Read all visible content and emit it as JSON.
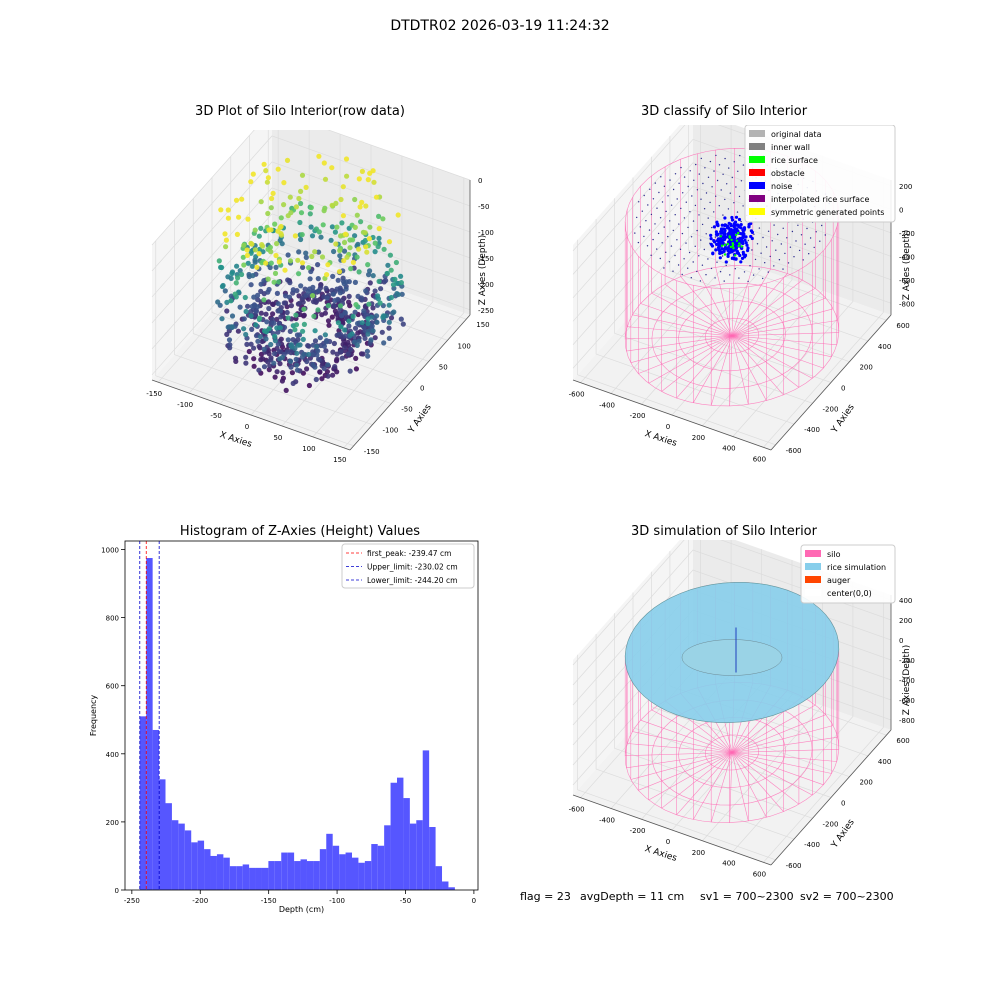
{
  "figure": {
    "suptitle": "DTDTR02 2026-03-19 11:24:32",
    "footer": {
      "flag": "flag = 23",
      "avg_depth": "avgDepth = 11 cm",
      "sv1": "sv1 = 700~2300",
      "sv2": "sv2 = 700~2300"
    }
  },
  "colors": {
    "pane": "#f2f2f2",
    "grid": "#dcdcdc",
    "silo_wire": "#ff69b4",
    "rice_sim": "#87ceeb",
    "noise": "#0000ff",
    "hist_bar": "#4d4dff",
    "peak_line": "#ff0000",
    "limit_line": "#0000cc"
  },
  "chart_data": [
    {
      "type": "scatter",
      "title": "3D Plot of Silo Interior(row data)",
      "xlabel": "X Axies",
      "ylabel": "Y Axies",
      "zlabel": "Z Axies (Depth)",
      "x_ticks": [
        "-150",
        "-100",
        "-50",
        "0",
        "50",
        "100",
        "150"
      ],
      "y_ticks": [
        "-150",
        "-100",
        "-50",
        "0",
        "50",
        "100",
        "150"
      ],
      "z_ticks": [
        "0",
        "-50",
        "-100",
        "-150",
        "-200",
        "-250"
      ],
      "xlim": [
        -160,
        160
      ],
      "ylim": [
        -160,
        160
      ],
      "zlim": [
        -260,
        0
      ],
      "colormap": "viridis",
      "grid": true
    },
    {
      "type": "scatter",
      "title": "3D classify of Silo Interior",
      "xlabel": "X Axies",
      "ylabel": "Y Axies",
      "zlabel": "Z Axies (Depth)",
      "x_ticks": [
        "-600",
        "-400",
        "-200",
        "0",
        "200",
        "400",
        "600"
      ],
      "y_ticks": [
        "-600",
        "-400",
        "-200",
        "0",
        "200",
        "400",
        "600"
      ],
      "z_ticks": [
        "200",
        "0",
        "-200",
        "-400",
        "-600",
        "-800"
      ],
      "xlim": [
        -650,
        650
      ],
      "ylim": [
        -650,
        650
      ],
      "zlim": [
        -900,
        250
      ],
      "legend_position": "top-right",
      "legend": [
        {
          "label": "original data",
          "color": "#b3b3b3"
        },
        {
          "label": "inner wall",
          "color": "#808080"
        },
        {
          "label": "rice surface",
          "color": "#00ff00"
        },
        {
          "label": "obstacle",
          "color": "#ff0000"
        },
        {
          "label": "noise",
          "color": "#0000ff"
        },
        {
          "label": "interpolated rice surface",
          "color": "#800080"
        },
        {
          "label": "symmetric generated points",
          "color": "#ffff00"
        }
      ],
      "grid": true
    },
    {
      "type": "bar",
      "title": "Histogram of Z-Axies (Height) Values",
      "xlabel": "Depth (cm)",
      "ylabel": "Frequency",
      "x_ticks": [
        "-250",
        "-200",
        "-150",
        "-100",
        "-50",
        "0"
      ],
      "y_ticks": [
        "0",
        "200",
        "400",
        "600",
        "800",
        "1000"
      ],
      "xlim": [
        -255,
        3
      ],
      "ylim": [
        0,
        1025
      ],
      "bin_width": 4.7,
      "bin_start": -244.2,
      "values": [
        510,
        975,
        470,
        325,
        255,
        205,
        195,
        175,
        140,
        145,
        120,
        100,
        105,
        95,
        70,
        70,
        75,
        65,
        65,
        65,
        85,
        85,
        110,
        110,
        85,
        90,
        85,
        85,
        120,
        165,
        130,
        105,
        110,
        95,
        80,
        85,
        135,
        130,
        190,
        315,
        330,
        270,
        195,
        205,
        410,
        185,
        70,
        25,
        8
      ],
      "vlines": [
        {
          "label": "first_peak: -239.47 cm",
          "x": -239.47,
          "color": "#ff0000"
        },
        {
          "label": "Upper_limit: -230.02 cm",
          "x": -230.02,
          "color": "#0000cc"
        },
        {
          "label": "Lower_limit: -244.20 cm",
          "x": -244.2,
          "color": "#0000cc"
        }
      ],
      "legend_position": "top-right",
      "grid": false
    },
    {
      "type": "scatter",
      "title": "3D simulation of Silo Interior",
      "xlabel": "X Axies",
      "ylabel": "Y Axies",
      "zlabel": "Z Axies (Depth)",
      "x_ticks": [
        "-600",
        "-400",
        "-200",
        "0",
        "200",
        "400",
        "600"
      ],
      "y_ticks": [
        "-600",
        "-400",
        "-200",
        "0",
        "200",
        "400",
        "600"
      ],
      "z_ticks": [
        "400",
        "200",
        "0",
        "-200",
        "-400",
        "-600",
        "-800"
      ],
      "xlim": [
        -650,
        650
      ],
      "ylim": [
        -650,
        650
      ],
      "zlim": [
        -900,
        450
      ],
      "legend_position": "top-right",
      "legend": [
        {
          "label": "silo",
          "color": "#ff69b4"
        },
        {
          "label": "rice simulation",
          "color": "#87ceeb"
        },
        {
          "label": "auger",
          "color": "#ff4500"
        },
        {
          "label": "center(0,0)",
          "color": "#ffffff"
        }
      ],
      "grid": true
    }
  ]
}
